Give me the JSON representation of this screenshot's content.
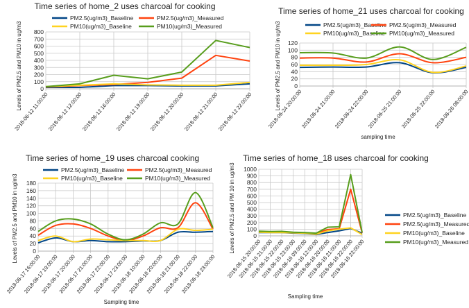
{
  "colors": {
    "PM2.5(ug/m3)_Baseline": "#004586",
    "PM2.5(ug/m3)_Measured": "#ff420e",
    "PM10(ug/m3)_Baseline": "#ffd320",
    "PM10(ug/m3)_Measured": "#579d1c"
  },
  "chart_data": [
    {
      "type": "line",
      "title": "Time series of home_2 uses charcoal for cooking",
      "xlabel": "",
      "ylabel": "Levels of PM2.5 and PM10 in ug/m3",
      "ylim": [
        0,
        800
      ],
      "ystep": 100,
      "grid": true,
      "smooth": false,
      "legend": "top",
      "categories": [
        "2018-06-12 11:00:00",
        "2018-06-12 12:00:00",
        "2018-06-12 16:00:00",
        "2018-06-12 19:00:00",
        "2018-06-12 20:00:00",
        "2018-06-12 21:00:00",
        "2018-06-12 22:00:00"
      ],
      "series": [
        {
          "name": "PM2.5(ug/m3)_Baseline",
          "values": [
            20,
            20,
            45,
            45,
            40,
            40,
            70
          ]
        },
        {
          "name": "PM2.5(ug/m3)_Measured",
          "values": [
            25,
            45,
            60,
            90,
            150,
            470,
            390
          ]
        },
        {
          "name": "PM10(ug/m3)_Baseline",
          "values": [
            30,
            50,
            70,
            55,
            50,
            50,
            90
          ]
        },
        {
          "name": "PM10(ug/m3)_Measured",
          "values": [
            30,
            70,
            190,
            140,
            235,
            680,
            580
          ]
        }
      ]
    },
    {
      "type": "line",
      "title": "Time series of home_21 uses charcoal for cooking",
      "xlabel": "sampling time",
      "ylabel": "Levels of PM2.5 and PM10 in ug/m3",
      "ylim": [
        0,
        120
      ],
      "ystep": 20,
      "grid": true,
      "smooth": true,
      "legend": "top",
      "categories": [
        "2018-06-24 20:00:00",
        "2018-06-24 21:00:00",
        "2018-06-24 22:00:00",
        "2018-06-25 21:00:00",
        "2018-06-25 22:00:00",
        "2018-06-26 08:00:00"
      ],
      "series": [
        {
          "name": "PM2.5(ug/m3)_Baseline",
          "values": [
            52,
            53,
            53,
            65,
            37,
            52
          ]
        },
        {
          "name": "PM2.5(ug/m3)_Measured",
          "values": [
            78,
            78,
            67,
            90,
            65,
            80
          ]
        },
        {
          "name": "PM10(ug/m3)_Baseline",
          "values": [
            58,
            58,
            60,
            73,
            38,
            56
          ]
        },
        {
          "name": "PM10(ug/m3)_Measured",
          "values": [
            93,
            92,
            78,
            109,
            74,
            108
          ]
        }
      ]
    },
    {
      "type": "line",
      "title": "Time series of home_19 uses charcoal cooking",
      "xlabel": "Sampling time",
      "ylabel": "Levels of PM2.5 and PM10 in ug/m3",
      "ylim": [
        0,
        180
      ],
      "ystep": 20,
      "grid": true,
      "smooth": true,
      "legend": "top",
      "categories": [
        "2018-06-17 16:00:00",
        "2018-06-17 19:00:00",
        "2018-06-17 20:00:00",
        "2018-06-17 21:00:00",
        "2018-06-17 22:00:00",
        "2018-06-17 23:00:00",
        "2018-06-18 10:00:00",
        "2018-06-18 20:00:00",
        "2018-06-18 21:00:00",
        "2018-06-18 22:00:00",
        "2018-06-18 23:00:00"
      ],
      "series": [
        {
          "name": "PM2.5(ug/m3)_Baseline",
          "values": [
            22,
            35,
            25,
            28,
            25,
            25,
            27,
            28,
            50,
            50,
            52
          ]
        },
        {
          "name": "PM2.5(ug/m3)_Measured",
          "values": [
            42,
            68,
            72,
            60,
            40,
            28,
            40,
            62,
            62,
            128,
            58
          ]
        },
        {
          "name": "PM10(ug/m3)_Baseline",
          "values": [
            28,
            40,
            25,
            32,
            30,
            28,
            28,
            28,
            58,
            55,
            58
          ]
        },
        {
          "name": "PM10(ug/m3)_Measured",
          "values": [
            52,
            80,
            85,
            72,
            45,
            30,
            45,
            75,
            72,
            155,
            62
          ]
        }
      ]
    },
    {
      "type": "line",
      "title": "Time series of home_18 uses charcoal for cooking",
      "xlabel": "Sampling time",
      "ylabel": "Levels of PM2.5 and PM 10 in ug/m3",
      "ylim": [
        0,
        1000
      ],
      "ystep": 100,
      "grid": true,
      "smooth": false,
      "legend": "right",
      "categories": [
        "2018-06-15 20:00:00",
        "2018-06-15 21:00:00",
        "2018-06-15 22:00:00",
        "2018-06-15 23:00:00",
        "2018-06-16 09:00:00",
        "2018-06-16 12:00:00",
        "2018-06-16 20:00:00",
        "2018-06-16 21:00:00",
        "2018-06-16 22:00:00",
        "2018-06-16 23:00:00"
      ],
      "series": [
        {
          "name": "PM2.5(ug/m3)_Baseline",
          "values": [
            50,
            50,
            50,
            40,
            35,
            20,
            50,
            75,
            110,
            40
          ]
        },
        {
          "name": "PM2.5(ug/m3)_Measured",
          "values": [
            60,
            55,
            58,
            50,
            45,
            35,
            95,
            105,
            700,
            45
          ]
        },
        {
          "name": "PM10(ug/m3)_Baseline",
          "values": [
            55,
            50,
            50,
            45,
            40,
            25,
            75,
            100,
            120,
            20
          ]
        },
        {
          "name": "PM10(ug/m3)_Measured",
          "values": [
            70,
            65,
            68,
            55,
            50,
            40,
            130,
            135,
            920,
            50
          ]
        }
      ]
    }
  ]
}
